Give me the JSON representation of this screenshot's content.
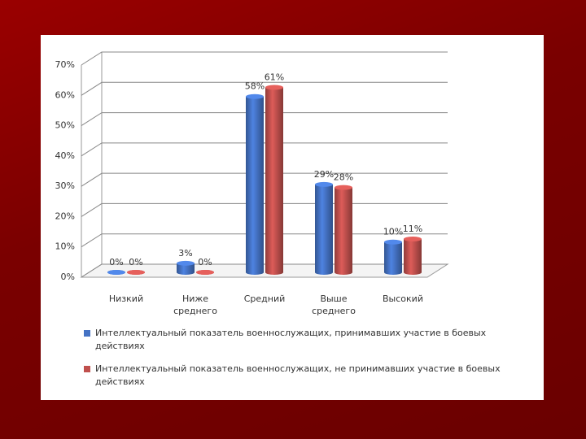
{
  "chart_data": {
    "type": "bar",
    "categories": [
      "Низкий",
      "Ниже среднего",
      "Средний",
      "Выше среднего",
      "Высокий"
    ],
    "series": [
      {
        "name": "Интеллектуальный показатель военнослужащих, принимавших участие в боевых действиях",
        "color": "#4472c4",
        "values": [
          0,
          3,
          58,
          29,
          10
        ],
        "value_labels": [
          "0%",
          "3%",
          "58%",
          "29%",
          "10%"
        ]
      },
      {
        "name": "Интеллектуальный показатель военнослужащих, не принимавших участие в боевых действиях",
        "color": "#c0504d",
        "values": [
          0,
          0,
          61,
          28,
          11
        ],
        "value_labels": [
          "0%",
          "0%",
          "61%",
          "28%",
          "11%"
        ]
      }
    ],
    "ylim": [
      0,
      70
    ],
    "yticks": [
      {
        "value": 0,
        "label": "0%"
      },
      {
        "value": 10,
        "label": "10%"
      },
      {
        "value": 20,
        "label": "20%"
      },
      {
        "value": 30,
        "label": "30%"
      },
      {
        "value": 40,
        "label": "40%"
      },
      {
        "value": 50,
        "label": "50%"
      },
      {
        "value": 60,
        "label": "60%"
      },
      {
        "value": 70,
        "label": "70%"
      }
    ],
    "grid": true,
    "legend": "bottom"
  }
}
